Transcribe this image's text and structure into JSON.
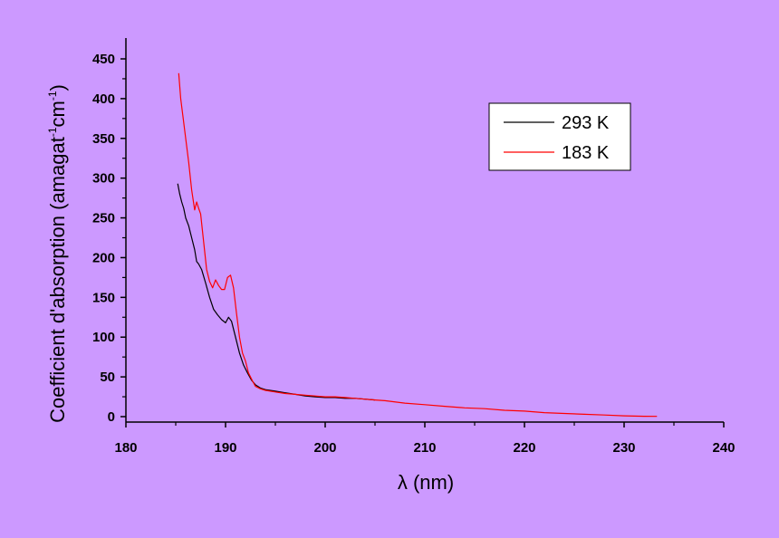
{
  "chart_data": {
    "type": "line",
    "title": "",
    "xlabel": "λ (nm)",
    "ylabel": {
      "main": "Coefficient d'absorption (amagat",
      "sup1": "-1",
      "mid": "cm",
      "sup2": "-1",
      "end": ")"
    },
    "xlim": [
      180,
      240
    ],
    "ylim": [
      0,
      450
    ],
    "x_ticks": [
      180,
      190,
      200,
      210,
      220,
      230,
      240
    ],
    "y_ticks": [
      0,
      50,
      100,
      150,
      200,
      250,
      300,
      350,
      400,
      450
    ],
    "grid": false,
    "legend_position": "top-right",
    "series": [
      {
        "name": "293 K",
        "color": "#000000",
        "x": [
          185.2,
          185.4,
          185.6,
          185.8,
          186.0,
          186.3,
          186.6,
          186.9,
          187.1,
          187.3,
          187.6,
          188.0,
          188.4,
          188.8,
          189.2,
          189.6,
          190.0,
          190.3,
          190.6,
          191.0,
          191.4,
          191.8,
          192.2,
          192.6,
          193.0,
          193.5,
          194.0,
          195.0,
          196.0,
          197.0,
          198.0,
          199.0,
          200.0,
          201.0,
          202.0,
          203.0,
          204.0,
          205.0
        ],
        "y": [
          293,
          280,
          270,
          262,
          250,
          240,
          225,
          210,
          195,
          192,
          185,
          168,
          150,
          135,
          128,
          122,
          118,
          125,
          120,
          100,
          80,
          65,
          55,
          46,
          40,
          36,
          34,
          32,
          30,
          28,
          26,
          25,
          24,
          24,
          23,
          23,
          22,
          21
        ]
      },
      {
        "name": "183 K",
        "color": "#ff0000",
        "x": [
          185.3,
          185.5,
          185.7,
          186.0,
          186.3,
          186.6,
          186.9,
          187.1,
          187.3,
          187.5,
          187.8,
          188.1,
          188.4,
          188.7,
          189.0,
          189.3,
          189.6,
          189.9,
          190.2,
          190.5,
          190.8,
          191.1,
          191.4,
          191.7,
          192.0,
          192.3,
          192.7,
          193.0,
          193.5,
          194.0,
          195.0,
          196.0,
          197.0,
          198.0,
          199.0,
          200.0,
          201.0,
          202.0,
          203.0,
          204.0,
          205.0,
          206.0,
          208.0,
          210.0,
          212.0,
          214.0,
          216.0,
          218.0,
          220.0,
          222.0,
          224.0,
          226.0,
          228.0,
          230.0,
          232.0,
          233.3
        ],
        "y": [
          432,
          400,
          380,
          350,
          320,
          285,
          260,
          270,
          262,
          255,
          220,
          185,
          170,
          162,
          172,
          165,
          160,
          160,
          175,
          178,
          162,
          130,
          100,
          80,
          70,
          55,
          45,
          38,
          35,
          33,
          31,
          29,
          28,
          27,
          26,
          25,
          25,
          24,
          23,
          22,
          21,
          20,
          17,
          15,
          13,
          11,
          10,
          8,
          7,
          5,
          4,
          3,
          2,
          1,
          0.5,
          0.3
        ]
      }
    ]
  }
}
